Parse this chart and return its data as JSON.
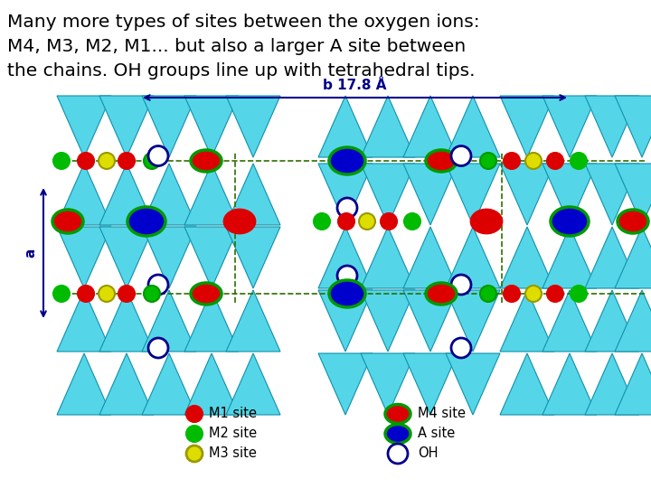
{
  "title_text": "Many more types of sites between the oxygen ions:\nM4, M3, M2, M1... but also a larger A site between\nthe chains. OH groups line up with tetrahedral tips.",
  "title_color": "#000000",
  "title_fontsize": 14.5,
  "bg_color": "#ffffff",
  "cyan": "#55D6E8",
  "cyan_edge": "#1090AA",
  "b_label": "b 17.8 Å",
  "a_label": "a",
  "arrow_color": "#00008B",
  "dashed_color": "#2d6e00"
}
